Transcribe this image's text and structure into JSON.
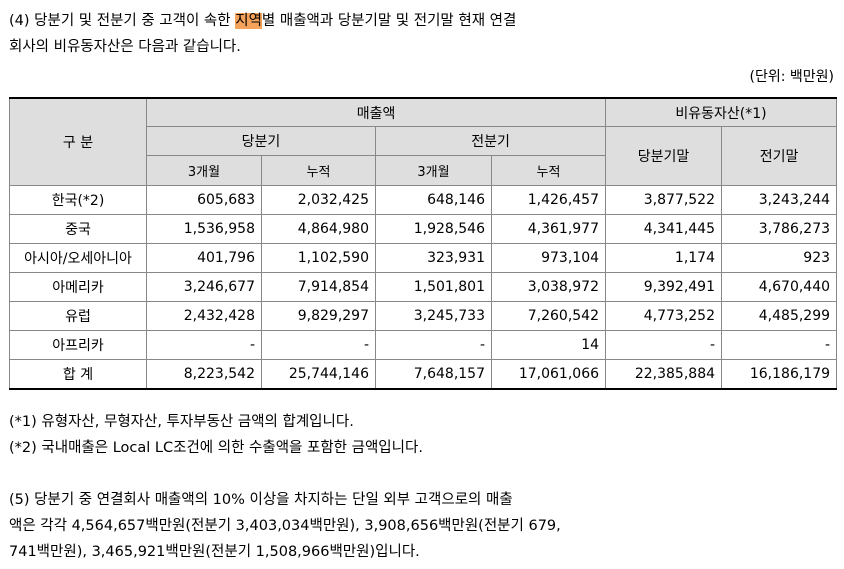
{
  "paragraph4": {
    "line1_before": "(4) 당분기 및 전분기 중 고객이 속한 ",
    "line1_highlight": "지역",
    "line1_after": "별 매출액과 당분기말 및 전기말 현재 연결",
    "line2": "회사의 비유동자산은 다음과 같습니다."
  },
  "unit": "(단위: 백만원)",
  "table": {
    "col_header_category": "구 분",
    "group_sales": "매출액",
    "group_noncurrent": "비유동자산(*1)",
    "sub_current_quarter": "당분기",
    "sub_prior_quarter": "전분기",
    "sub_current_end": "당분기말",
    "sub_prior_end": "전기말",
    "h_3months_a": "3개월",
    "h_cumulative_a": "누적",
    "h_3months_b": "3개월",
    "h_cumulative_b": "누적",
    "rows": [
      {
        "region": "한국(*2)",
        "v": [
          "605,683",
          "2,032,425",
          "648,146",
          "1,426,457",
          "3,877,522",
          "3,243,244"
        ]
      },
      {
        "region": "중국",
        "v": [
          "1,536,958",
          "4,864,980",
          "1,928,546",
          "4,361,977",
          "4,341,445",
          "3,786,273"
        ]
      },
      {
        "region": "아시아/오세아니아",
        "v": [
          "401,796",
          "1,102,590",
          "323,931",
          "973,104",
          "1,174",
          "923"
        ]
      },
      {
        "region": "아메리카",
        "v": [
          "3,246,677",
          "7,914,854",
          "1,501,801",
          "3,038,972",
          "9,392,491",
          "4,670,440"
        ]
      },
      {
        "region": "유럽",
        "v": [
          "2,432,428",
          "9,829,297",
          "3,245,733",
          "7,260,542",
          "4,773,252",
          "4,485,299"
        ]
      },
      {
        "region": "아프리카",
        "v": [
          "-",
          "-",
          "-",
          "14",
          "-",
          "-"
        ]
      },
      {
        "region": "합 계",
        "v": [
          "8,223,542",
          "25,744,146",
          "7,648,157",
          "17,061,066",
          "22,385,884",
          "16,186,179"
        ]
      }
    ]
  },
  "notes": [
    "(*1) 유형자산, 무형자산, 투자부동산 금액의 합계입니다.",
    "(*2) 국내매출은 Local LC조건에 의한 수출액을 포함한 금액입니다."
  ],
  "paragraph5": [
    "(5) 당분기 중 연결회사 매출액의 10% 이상을 차지하는 단일 외부 고객으로의 매출",
    "액은 각각 4,564,657백만원(전분기 3,403,034백만원), 3,908,656백만원(전분기 679,",
    "741백만원), 3,465,921백만원(전분기 1,508,966백만원)입니다."
  ]
}
